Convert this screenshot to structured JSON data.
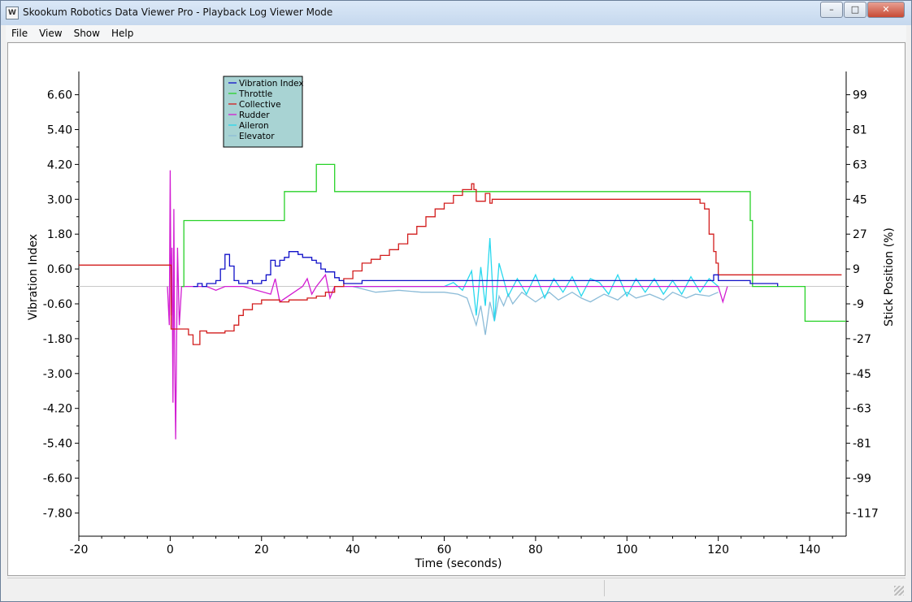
{
  "window": {
    "title": "Skookum Robotics Data Viewer Pro - Playback Log Viewer Mode",
    "icon": "app-logo-icon",
    "buttons": {
      "minimize": "–",
      "maximize": "□",
      "close": "✕"
    }
  },
  "menu": {
    "items": [
      "File",
      "View",
      "Show",
      "Help"
    ]
  },
  "colors": {
    "vibration": "#1010c8",
    "throttle": "#28d228",
    "collective": "#d21c1c",
    "rudder": "#d21cd2",
    "aileron": "#28d8ee",
    "elevator": "#8cbcd8",
    "legend_bg": "#a8d3d3",
    "zero_line": "#c8c8c8"
  },
  "chart_data": {
    "type": "line",
    "xlabel": "Time (seconds)",
    "ylabel": "Vibration Index",
    "y2label": "Stick Position (%)",
    "xlim": [
      -20,
      148
    ],
    "ylim": [
      -8.6,
      7.4
    ],
    "y2lim": [
      -129,
      111
    ],
    "x_ticks": [
      -20,
      0,
      20,
      40,
      60,
      80,
      100,
      120,
      140
    ],
    "y_ticks": [
      "6.60",
      "5.40",
      "4.20",
      "3.00",
      "1.80",
      "0.60",
      "-0.60",
      "-1.80",
      "-3.00",
      "-4.20",
      "-5.40",
      "-6.60",
      "-7.80"
    ],
    "y2_ticks": [
      "99",
      "81",
      "63",
      "45",
      "27",
      "9",
      "-9",
      "-27",
      "-45",
      "-63",
      "-81",
      "-99",
      "-117"
    ],
    "legend": {
      "position": "top-left",
      "entries": [
        "Vibration Index",
        "Throttle",
        "Collective",
        "Rudder",
        "Aileron",
        "Elevator"
      ]
    },
    "series": [
      {
        "name": "Vibration Index",
        "axis": "left",
        "color_key": "vibration",
        "x": [
          5,
          6,
          7,
          8,
          9,
          10,
          11,
          12,
          13,
          14,
          15,
          16,
          17,
          18,
          19,
          20,
          21,
          22,
          23,
          24,
          25,
          26,
          27,
          28,
          29,
          30,
          31,
          32,
          33,
          34,
          35,
          36,
          37,
          38,
          39,
          40,
          42,
          45,
          50,
          55,
          60,
          65,
          70,
          80,
          90,
          100,
          110,
          116,
          118,
          119,
          120,
          122,
          125,
          127,
          129,
          131,
          133
        ],
        "y": [
          0,
          0.1,
          0,
          0.1,
          0.1,
          0.2,
          0.6,
          1.1,
          0.7,
          0.2,
          0.1,
          0.1,
          0.2,
          0.1,
          0.1,
          0.2,
          0.4,
          0.9,
          0.7,
          0.9,
          1.0,
          1.2,
          1.2,
          1.1,
          1.0,
          1.0,
          0.9,
          0.8,
          0.6,
          0.5,
          0.5,
          0.3,
          0.2,
          0.1,
          0.1,
          0.1,
          0.2,
          0.2,
          0.2,
          0.2,
          0.2,
          0.2,
          0.2,
          0.2,
          0.2,
          0.2,
          0.2,
          0.2,
          0.2,
          0.4,
          0.2,
          0.2,
          0.2,
          0.1,
          0.1,
          0.1,
          0.0
        ]
      },
      {
        "name": "Throttle",
        "axis": "right",
        "color_key": "throttle",
        "x": [
          2.5,
          3,
          20.5,
          25,
          32,
          36,
          127,
          127.5,
          139,
          148
        ],
        "y": [
          0,
          34,
          34,
          49,
          63,
          49,
          34,
          0,
          -18,
          -18
        ]
      },
      {
        "name": "Collective",
        "axis": "right",
        "color_key": "collective",
        "x": [
          -20,
          0,
          0.2,
          1,
          3,
          4,
          5,
          6,
          6.5,
          8,
          10,
          12,
          14,
          15,
          16,
          18,
          20,
          22,
          24,
          26,
          28,
          30,
          32,
          34,
          36,
          38,
          40,
          42,
          44,
          46,
          48,
          50,
          52,
          54,
          56,
          58,
          60,
          62,
          64,
          66,
          66.5,
          67,
          68,
          69,
          70,
          70.5,
          72,
          75,
          80,
          90,
          100,
          110,
          116,
          117,
          118,
          119,
          119.5,
          120,
          122,
          126,
          133,
          140,
          147
        ],
        "y": [
          11,
          11,
          -22,
          -22,
          -22,
          -25,
          -30,
          -30,
          -23,
          -24,
          -24,
          -23,
          -20,
          -15,
          -12,
          -9,
          -7,
          -7,
          -8,
          -7,
          -7,
          -6,
          -5,
          -3,
          0,
          4,
          8,
          12,
          14,
          16,
          19,
          22,
          27,
          31,
          36,
          40,
          43,
          47,
          50,
          53,
          50,
          44,
          44,
          48,
          43,
          45,
          45,
          45,
          45,
          45,
          45,
          45,
          43,
          40,
          27,
          18,
          12,
          6,
          6,
          6,
          6,
          6,
          6
        ]
      },
      {
        "name": "Rudder",
        "axis": "right",
        "color_key": "rudder",
        "x": [
          -0.6,
          -0.2,
          0.0,
          0.2,
          0.4,
          0.6,
          0.8,
          1.0,
          1.2,
          1.6,
          2.0,
          2.5,
          8,
          10,
          12,
          14,
          16,
          22,
          23,
          24,
          29,
          30,
          31,
          32,
          34,
          35,
          36,
          40,
          48,
          56,
          60,
          64,
          68,
          72,
          120,
          121,
          122
        ],
        "y": [
          0,
          -20,
          60,
          -15,
          20,
          -60,
          40,
          -40,
          -79,
          20,
          -20,
          0,
          0,
          -2,
          0,
          0,
          0,
          -4,
          4,
          -8,
          0,
          4,
          -4,
          0,
          6,
          -6,
          0,
          0,
          0,
          0,
          0,
          0,
          0,
          0,
          0,
          -8,
          0
        ]
      },
      {
        "name": "Aileron",
        "axis": "right",
        "color_key": "aileron",
        "x": [
          40,
          45,
          50,
          55,
          60,
          62,
          64,
          66,
          67,
          68,
          69,
          70,
          71,
          72,
          74,
          76,
          78,
          80,
          82,
          84,
          86,
          88,
          90,
          92,
          94,
          96,
          98,
          100,
          102,
          104,
          106,
          108,
          110,
          112,
          114,
          116,
          118,
          120
        ],
        "y": [
          0,
          0,
          0,
          0,
          0,
          2,
          -2,
          8,
          -15,
          10,
          -10,
          25,
          -18,
          12,
          -5,
          4,
          -4,
          6,
          -6,
          4,
          -3,
          5,
          -5,
          4,
          2,
          -4,
          6,
          -5,
          4,
          -3,
          4,
          -4,
          3,
          -4,
          5,
          -3,
          4,
          0
        ]
      },
      {
        "name": "Elevator",
        "axis": "right",
        "color_key": "elevator",
        "x": [
          40,
          45,
          50,
          55,
          60,
          63,
          65,
          67,
          68,
          69,
          70,
          71,
          72,
          73,
          74,
          75,
          77,
          80,
          83,
          85,
          88,
          90,
          92,
          95,
          98,
          100,
          102,
          105,
          108,
          110,
          113,
          115,
          118,
          120
        ],
        "y": [
          0,
          -3,
          -2,
          -3,
          -3,
          -4,
          -6,
          -20,
          -10,
          -25,
          -8,
          -18,
          -5,
          -10,
          -4,
          -9,
          -3,
          -8,
          -3,
          -7,
          -3,
          -6,
          -8,
          -4,
          -7,
          -3,
          -6,
          -4,
          -7,
          -3,
          -6,
          -4,
          -5,
          -3
        ]
      }
    ]
  }
}
